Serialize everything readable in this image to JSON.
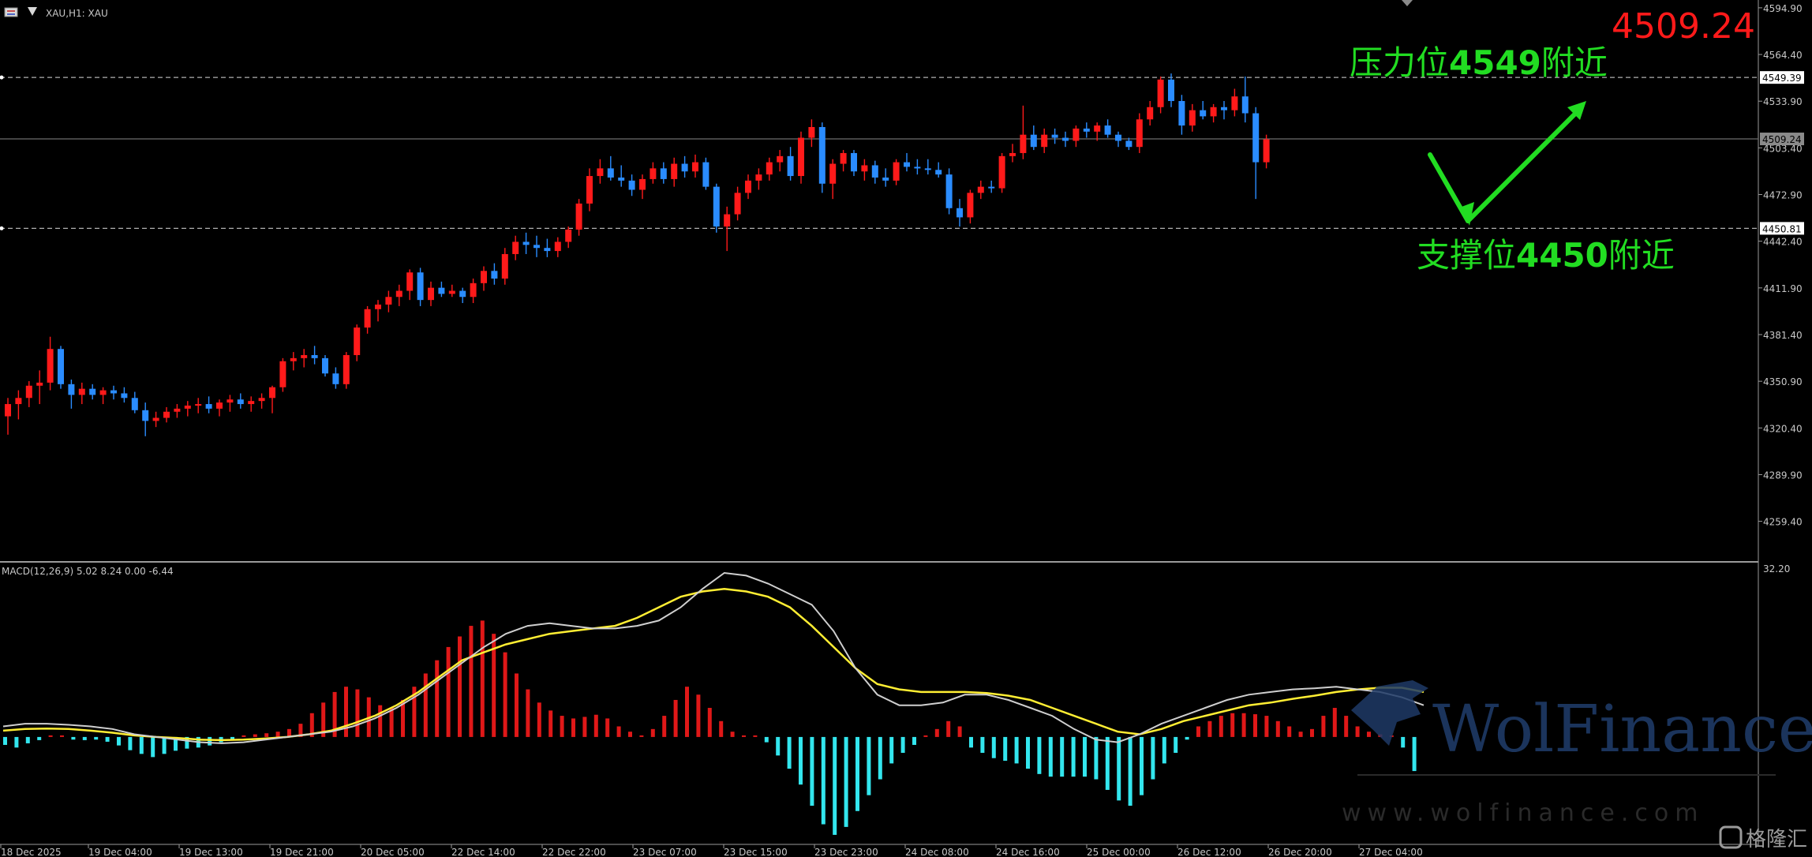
{
  "header": {
    "symbol_label": "XAU,H1:  XAU",
    "flag_icon": "menu-flag-icon"
  },
  "indicator": {
    "macd_label": "MACD(12,26,9) 5.02 8.24 0.00 -6.44",
    "macd_top_label": "32.20"
  },
  "annotations": {
    "current_price": "4509.24",
    "resistance_prefix": "压力位",
    "resistance_value": "4549",
    "resistance_suffix": "附近",
    "support_prefix": "支撑位",
    "support_value": "4450",
    "support_suffix": "附近"
  },
  "watermark": {
    "brand": "WolFinance",
    "url": "www.wolfinance.com",
    "corner_brand": "格隆汇"
  },
  "colors": {
    "up_candle": "#ff1a1a",
    "down_candle": "#2a8cff",
    "macd_positive": "#e01818",
    "macd_negative": "#33e6ee",
    "macd_line": "#cfcfcf",
    "signal_line": "#ffee33",
    "annotation": "#22dd22"
  },
  "chart_data": [
    {
      "type": "candlestick",
      "title": "XAU,H1:  XAU",
      "ylim": [
        4236,
        4600
      ],
      "y_ticks": [
        "4594.90",
        "4564.40",
        "4533.90",
        "4503.40",
        "4472.90",
        "4442.40",
        "4411.90",
        "4381.40",
        "4350.90",
        "4320.40",
        "4289.90",
        "4259.40"
      ],
      "x_tick_labels": [
        "18 Dec 2025",
        "19 Dec 04:00",
        "19 Dec 13:00",
        "19 Dec 21:00",
        "20 Dec 05:00",
        "22 Dec 14:00",
        "22 Dec 22:00",
        "23 Dec 07:00",
        "23 Dec 15:00",
        "23 Dec 23:00",
        "24 Dec 08:00",
        "24 Dec 16:00",
        "25 Dec 00:00",
        "26 Dec 12:00",
        "26 Dec 20:00",
        "27 Dec 04:00"
      ],
      "price_labels": [
        {
          "value": 4549.39,
          "label": "4549.39",
          "style": "dashed"
        },
        {
          "value": 4509.24,
          "label": "4509.24",
          "style": "solid"
        },
        {
          "value": 4450.81,
          "label": "4450.81",
          "style": "dashed"
        }
      ],
      "ohlc": [
        [
          4328,
          4340,
          4316,
          4336
        ],
        [
          4336,
          4345,
          4326,
          4340
        ],
        [
          4340,
          4351,
          4334,
          4348
        ],
        [
          4348,
          4358,
          4336,
          4350
        ],
        [
          4350,
          4380,
          4345,
          4372
        ],
        [
          4372,
          4374,
          4346,
          4349
        ],
        [
          4349,
          4352,
          4333,
          4342
        ],
        [
          4342,
          4350,
          4336,
          4346
        ],
        [
          4346,
          4349,
          4339,
          4342
        ],
        [
          4342,
          4347,
          4336,
          4345
        ],
        [
          4345,
          4348,
          4339,
          4343
        ],
        [
          4343,
          4347,
          4337,
          4340
        ],
        [
          4340,
          4344,
          4330,
          4332
        ],
        [
          4332,
          4337,
          4315,
          4325
        ],
        [
          4325,
          4331,
          4321,
          4327
        ],
        [
          4327,
          4334,
          4324,
          4331
        ],
        [
          4331,
          4336,
          4327,
          4333
        ],
        [
          4333,
          4338,
          4328,
          4335
        ],
        [
          4335,
          4340,
          4330,
          4336
        ],
        [
          4336,
          4341,
          4330,
          4333
        ],
        [
          4333,
          4339,
          4328,
          4337
        ],
        [
          4337,
          4342,
          4331,
          4339
        ],
        [
          4339,
          4343,
          4333,
          4336
        ],
        [
          4336,
          4341,
          4331,
          4338
        ],
        [
          4338,
          4343,
          4333,
          4340
        ],
        [
          4340,
          4348,
          4330,
          4347
        ],
        [
          4347,
          4366,
          4344,
          4364
        ],
        [
          4364,
          4370,
          4358,
          4366
        ],
        [
          4366,
          4372,
          4360,
          4368
        ],
        [
          4368,
          4374,
          4362,
          4366
        ],
        [
          4366,
          4368,
          4354,
          4356
        ],
        [
          4356,
          4360,
          4346,
          4349
        ],
        [
          4349,
          4370,
          4346,
          4368
        ],
        [
          4368,
          4388,
          4364,
          4386
        ],
        [
          4386,
          4400,
          4382,
          4398
        ],
        [
          4398,
          4404,
          4390,
          4401
        ],
        [
          4401,
          4410,
          4396,
          4406
        ],
        [
          4406,
          4414,
          4400,
          4410
        ],
        [
          4410,
          4424,
          4404,
          4422
        ],
        [
          4422,
          4425,
          4400,
          4404
        ],
        [
          4404,
          4416,
          4400,
          4412
        ],
        [
          4412,
          4416,
          4406,
          4408
        ],
        [
          4408,
          4414,
          4406,
          4410
        ],
        [
          4410,
          4412,
          4402,
          4406
        ],
        [
          4406,
          4418,
          4402,
          4415
        ],
        [
          4415,
          4426,
          4410,
          4423
        ],
        [
          4423,
          4428,
          4414,
          4418
        ],
        [
          4418,
          4438,
          4414,
          4434
        ],
        [
          4434,
          4446,
          4430,
          4442
        ],
        [
          4442,
          4448,
          4434,
          4440
        ],
        [
          4440,
          4446,
          4432,
          4438
        ],
        [
          4438,
          4444,
          4432,
          4436
        ],
        [
          4436,
          4445,
          4432,
          4442
        ],
        [
          4442,
          4452,
          4438,
          4450
        ],
        [
          4450,
          4470,
          4446,
          4467
        ],
        [
          4467,
          4490,
          4462,
          4485
        ],
        [
          4485,
          4496,
          4480,
          4490
        ],
        [
          4490,
          4498,
          4482,
          4484
        ],
        [
          4484,
          4492,
          4478,
          4482
        ],
        [
          4482,
          4486,
          4472,
          4476
        ],
        [
          4476,
          4486,
          4470,
          4483
        ],
        [
          4483,
          4494,
          4480,
          4490
        ],
        [
          4490,
          4494,
          4480,
          4483
        ],
        [
          4483,
          4497,
          4478,
          4493
        ],
        [
          4493,
          4498,
          4484,
          4488
        ],
        [
          4488,
          4499,
          4484,
          4494
        ],
        [
          4494,
          4497,
          4476,
          4478
        ],
        [
          4478,
          4480,
          4448,
          4452
        ],
        [
          4452,
          4465,
          4436,
          4460
        ],
        [
          4460,
          4478,
          4456,
          4474
        ],
        [
          4474,
          4486,
          4470,
          4482
        ],
        [
          4482,
          4490,
          4476,
          4486
        ],
        [
          4486,
          4497,
          4482,
          4494
        ],
        [
          4494,
          4502,
          4488,
          4498
        ],
        [
          4498,
          4504,
          4482,
          4485
        ],
        [
          4485,
          4514,
          4480,
          4510
        ],
        [
          4510,
          4522,
          4504,
          4517
        ],
        [
          4517,
          4520,
          4474,
          4480
        ],
        [
          4480,
          4496,
          4470,
          4493
        ],
        [
          4493,
          4502,
          4488,
          4500
        ],
        [
          4500,
          4502,
          4485,
          4488
        ],
        [
          4488,
          4496,
          4482,
          4492
        ],
        [
          4492,
          4495,
          4480,
          4484
        ],
        [
          4484,
          4490,
          4478,
          4482
        ],
        [
          4482,
          4496,
          4479,
          4494
        ],
        [
          4494,
          4500,
          4488,
          4491
        ],
        [
          4491,
          4496,
          4486,
          4490
        ],
        [
          4490,
          4496,
          4486,
          4489
        ],
        [
          4489,
          4494,
          4484,
          4486
        ],
        [
          4486,
          4490,
          4460,
          4464
        ],
        [
          4464,
          4470,
          4452,
          4458
        ],
        [
          4458,
          4476,
          4454,
          4474
        ],
        [
          4474,
          4482,
          4470,
          4478
        ],
        [
          4478,
          4482,
          4474,
          4477
        ],
        [
          4477,
          4500,
          4474,
          4498
        ],
        [
          4498,
          4506,
          4494,
          4500
        ],
        [
          4500,
          4531,
          4496,
          4512
        ],
        [
          4512,
          4518,
          4502,
          4504
        ],
        [
          4504,
          4516,
          4500,
          4512
        ],
        [
          4512,
          4516,
          4506,
          4510
        ],
        [
          4510,
          4514,
          4504,
          4508
        ],
        [
          4508,
          4518,
          4504,
          4516
        ],
        [
          4516,
          4520,
          4510,
          4514
        ],
        [
          4514,
          4520,
          4508,
          4518
        ],
        [
          4518,
          4522,
          4510,
          4512
        ],
        [
          4512,
          4514,
          4504,
          4508
        ],
        [
          4508,
          4510,
          4502,
          4504
        ],
        [
          4504,
          4526,
          4500,
          4522
        ],
        [
          4522,
          4534,
          4518,
          4530
        ],
        [
          4530,
          4550,
          4526,
          4548
        ],
        [
          4548,
          4552,
          4530,
          4534
        ],
        [
          4534,
          4538,
          4512,
          4518
        ],
        [
          4518,
          4532,
          4514,
          4528
        ],
        [
          4528,
          4534,
          4522,
          4524
        ],
        [
          4524,
          4532,
          4520,
          4530
        ],
        [
          4530,
          4534,
          4522,
          4528
        ],
        [
          4528,
          4542,
          4524,
          4537
        ],
        [
          4537,
          4550,
          4520,
          4526
        ],
        [
          4526,
          4530,
          4470,
          4494
        ],
        [
          4494,
          4512,
          4490,
          4509
        ]
      ]
    },
    {
      "type": "macd",
      "title": "MACD(12,26,9) 5.02 8.24 0.00 -6.44",
      "ylim": [
        -20,
        32.2
      ],
      "histogram": [
        -1.5,
        -2,
        -1.2,
        -0.6,
        0,
        0,
        -0.5,
        -0.6,
        -0.5,
        -0.9,
        -1.6,
        -2.5,
        -3.2,
        -3.8,
        -3.2,
        -2.6,
        -2.2,
        -2,
        -1.6,
        -1,
        -0.4,
        0.2,
        0.5,
        0.7,
        1,
        1.5,
        2.5,
        4.5,
        6.5,
        8.5,
        9.5,
        9,
        7.5,
        6,
        5.5,
        7,
        9.5,
        12,
        14.5,
        17,
        19,
        21,
        22,
        19.5,
        16,
        12,
        9,
        6.5,
        5,
        4,
        3.5,
        3.8,
        4.2,
        3.5,
        2,
        1,
        0,
        1.5,
        4,
        7,
        9.5,
        8,
        5.5,
        3,
        1,
        0,
        0,
        -1,
        -3.5,
        -6,
        -9,
        -13,
        -16.5,
        -18.5,
        -17,
        -14,
        -11,
        -8,
        -5,
        -3,
        -1.5,
        0,
        1.5,
        3,
        2,
        -2,
        -3,
        -4,
        -4.5,
        -5,
        -6,
        -7,
        -7.5,
        -7.5,
        -7.5,
        -7.5,
        -8,
        -10,
        -12,
        -13,
        -11,
        -8,
        -5,
        -3,
        -0.5,
        2,
        3,
        4,
        4.5,
        4.5,
        4.3,
        4,
        3,
        2,
        1,
        1.5,
        4,
        5.5,
        4,
        2,
        1,
        0.5,
        0,
        -2,
        -6.44
      ],
      "macd_line": [
        2,
        2.5,
        2.5,
        2.3,
        2,
        1.5,
        0.5,
        0,
        -0.5,
        -1,
        -1.2,
        -1,
        -0.5,
        0,
        0.5,
        1,
        2,
        3.5,
        5.5,
        8,
        11,
        14,
        17,
        19.5,
        21,
        21.5,
        21,
        20.5,
        20.5,
        21,
        22,
        24.5,
        28,
        31,
        30.5,
        29,
        27,
        25,
        20,
        13,
        8,
        6,
        6,
        6.5,
        8,
        8,
        7,
        5.5,
        4,
        1.5,
        -0.5,
        -1,
        0.5,
        2.5,
        4,
        5.5,
        7,
        8,
        8.5,
        9,
        9.2,
        9.5,
        9,
        8.5,
        7.5,
        6
      ],
      "signal_line": [
        1.2,
        1.5,
        1.6,
        1.5,
        1.2,
        0.8,
        0.3,
        0,
        -0.2,
        -0.5,
        -0.6,
        -0.5,
        -0.3,
        0,
        0.5,
        1.2,
        2.5,
        4,
        6,
        8.5,
        11.5,
        14.5,
        16,
        17.5,
        18.5,
        19.5,
        20,
        20.5,
        21,
        22.5,
        24.5,
        26.5,
        27.5,
        28,
        27.5,
        26.5,
        24.5,
        21,
        17,
        13,
        10,
        9,
        8.5,
        8.5,
        8.5,
        8.3,
        7.8,
        7,
        5.5,
        4,
        2.5,
        1,
        0.5,
        1.5,
        3,
        4,
        5,
        6,
        6.5,
        7.2,
        7.8,
        8.5,
        9,
        9.3,
        9.3,
        8.5
      ]
    }
  ]
}
